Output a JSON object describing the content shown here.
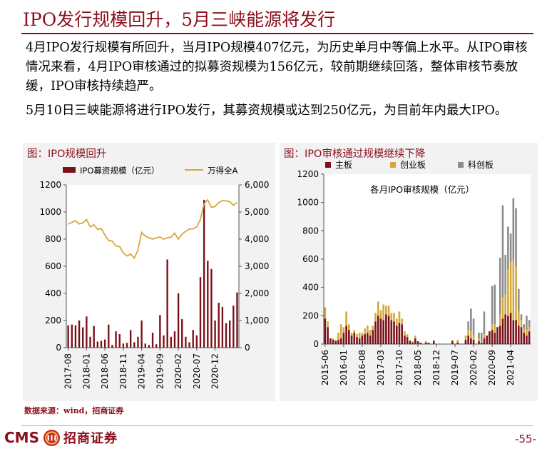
{
  "page": {
    "title": "IPO发行规模回升，5月三峡能源将发行",
    "paragraphs": [
      "4月IPO发行规模有所回升，当月IPO规模407亿元，为历史单月中等偏上水平。从IPO审核情况来看，4月IPO审核通过的拟募资规模为156亿元，较前期继续回落，整体审核节奏放缓，IPO审核持续趋严。",
      "5月10日三峡能源将进行IPO发行，其募资规模或达到250亿元，为目前年内最大IPO。"
    ],
    "source": "数据来源：wind，招商证券",
    "page_number": "-55-",
    "logo": {
      "text": "CMS",
      "name": "招商证券"
    }
  },
  "colors": {
    "brand": "#8b0f1d",
    "bar": "#7a1018",
    "line": "#d6a73a",
    "main_board": "#7a1018",
    "chinext": "#d6a73a",
    "star": "#8c8c8c",
    "panel_bg": "#f2f2f2"
  },
  "chart_data": [
    {
      "type": "bar+line",
      "title": "图：IPO规模回升",
      "legend": [
        "IPO募资规模（亿元）",
        "万得全A"
      ],
      "legend_position": "top",
      "x_tick_labels": [
        "2017-08",
        "2018-01",
        "2018-06",
        "2018-11",
        "2019-04",
        "2019-09",
        "2020-02",
        "2020-07",
        "2020-12"
      ],
      "y_left": {
        "lim": [
          0,
          1200
        ],
        "ticks": [
          0,
          200,
          400,
          600,
          800,
          1000,
          1200
        ]
      },
      "y_right": {
        "lim": [
          0,
          6000
        ],
        "ticks": [
          "0",
          "1,000",
          "2,000",
          "3,000",
          "4,000",
          "5,000",
          "6,000"
        ]
      },
      "series": [
        {
          "name": "IPO募资规模（亿元）",
          "axis": "left",
          "values": [
            165,
            170,
            165,
            200,
            150,
            230,
            80,
            160,
            45,
            50,
            60,
            170,
            20,
            120,
            100,
            30,
            35,
            130,
            40,
            80,
            200,
            30,
            20,
            110,
            25,
            240,
            90,
            650,
            80,
            120,
            400,
            210,
            80,
            40,
            130,
            90,
            520,
            1090,
            640,
            580,
            200,
            330,
            300,
            180,
            200,
            310,
            407
          ]
        },
        {
          "name": "万得全A",
          "axis": "right",
          "values": [
            4550,
            4620,
            4680,
            4560,
            4600,
            4720,
            4450,
            4530,
            4360,
            4390,
            4150,
            3950,
            3930,
            3750,
            3730,
            3500,
            3380,
            3450,
            3300,
            3600,
            4250,
            4110,
            4050,
            4000,
            4050,
            4080,
            4000,
            4050,
            4070,
            4220,
            4000,
            4180,
            4290,
            4370,
            4380,
            4450,
            4720,
            5300,
            5450,
            5180,
            5200,
            5350,
            5420,
            5410,
            5380,
            5250,
            5350
          ]
        }
      ]
    },
    {
      "type": "stacked_bar",
      "title": "图：IPO审核通过规模继续下降",
      "subtitle": "各月IPO审核规模（亿元）",
      "legend": [
        "主板",
        "创业板",
        "科创板"
      ],
      "legend_position": "top",
      "x_tick_labels": [
        "2015-06",
        "2016-01",
        "2016-08",
        "2017-03",
        "2017-10",
        "2018-05",
        "2018-12",
        "2019-07",
        "2020-02",
        "2020-09",
        "2021-04"
      ],
      "y": {
        "lim": [
          0,
          1200
        ],
        "ticks": [
          0,
          200,
          400,
          600,
          800,
          1000,
          1200
        ]
      },
      "series": [
        {
          "name": "主板",
          "values": [
            180,
            120,
            40,
            30,
            20,
            30,
            40,
            80,
            130,
            100,
            60,
            80,
            50,
            40,
            60,
            70,
            80,
            60,
            100,
            160,
            200,
            180,
            170,
            210,
            200,
            170,
            160,
            130,
            150,
            140,
            60,
            50,
            20,
            10,
            40,
            20,
            10,
            0,
            10,
            10,
            0,
            20,
            0,
            0,
            0,
            0,
            0,
            0,
            20,
            0,
            10,
            0,
            0,
            30,
            60,
            40,
            30,
            0,
            20,
            10,
            40,
            60,
            90,
            100,
            80,
            120,
            130,
            180,
            210,
            200,
            220,
            170,
            170,
            130,
            120,
            80,
            60,
            90
          ]
        },
        {
          "name": "创业板",
          "values": [
            80,
            40,
            0,
            10,
            10,
            50,
            100,
            40,
            100,
            40,
            20,
            20,
            20,
            40,
            20,
            40,
            50,
            40,
            30,
            60,
            100,
            60,
            110,
            60,
            70,
            50,
            60,
            50,
            80,
            40,
            30,
            20,
            10,
            10,
            20,
            0,
            0,
            0,
            10,
            0,
            0,
            10,
            0,
            0,
            0,
            0,
            0,
            0,
            10,
            0,
            20,
            0,
            0,
            30,
            40,
            50,
            30,
            0,
            20,
            10,
            30,
            0,
            0,
            40,
            60,
            0,
            80,
            150,
            140,
            330,
            360,
            420,
            380,
            100,
            50,
            30,
            40,
            30
          ]
        },
        {
          "name": "科创板",
          "values": [
            0,
            0,
            0,
            0,
            0,
            0,
            0,
            0,
            0,
            0,
            0,
            0,
            0,
            0,
            0,
            0,
            0,
            0,
            0,
            0,
            0,
            0,
            0,
            0,
            0,
            0,
            0,
            0,
            0,
            0,
            0,
            0,
            0,
            0,
            0,
            0,
            0,
            0,
            0,
            0,
            0,
            0,
            0,
            0,
            0,
            0,
            0,
            0,
            0,
            0,
            0,
            0,
            0,
            0,
            60,
            160,
            120,
            0,
            40,
            60,
            160,
            0,
            0,
            270,
            280,
            0,
            400,
            650,
            280,
            300,
            200,
            440,
            410,
            160,
            40,
            30,
            100,
            50
          ]
        }
      ]
    }
  ]
}
